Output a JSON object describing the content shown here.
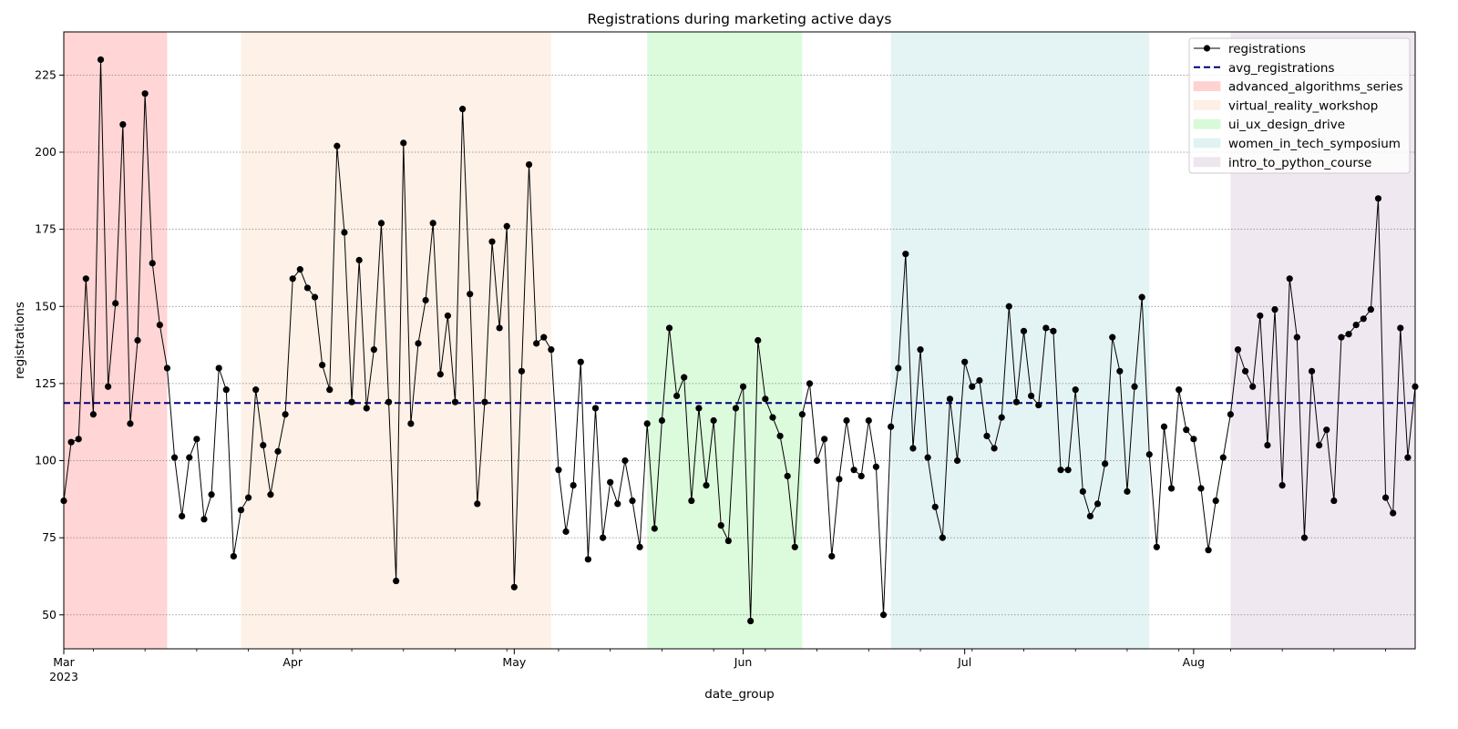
{
  "chart_data": {
    "type": "line",
    "title": "Registrations during marketing active days",
    "xlabel": "date_group",
    "ylabel": "registrations",
    "x_start": "2023-03-01",
    "x_end": "2023-08-31",
    "ylim": [
      39,
      239
    ],
    "yticks": [
      50,
      75,
      100,
      125,
      150,
      175,
      200,
      225
    ],
    "xticks_major": [
      {
        "date": "2023-03-01",
        "label": "Mar",
        "sublabel": "2023"
      },
      {
        "date": "2023-04-01",
        "label": "Apr",
        "sublabel": ""
      },
      {
        "date": "2023-05-01",
        "label": "May",
        "sublabel": ""
      },
      {
        "date": "2023-06-01",
        "label": "Jun",
        "sublabel": ""
      },
      {
        "date": "2023-07-01",
        "label": "Jul",
        "sublabel": ""
      },
      {
        "date": "2023-08-01",
        "label": "Aug",
        "sublabel": ""
      }
    ],
    "grid": "horizontal dotted",
    "legend_position": "top-right",
    "series": [
      {
        "name": "registrations",
        "style": "line-with-markers",
        "color": "#000000",
        "values": [
          87,
          106,
          107,
          159,
          115,
          230,
          124,
          151,
          209,
          112,
          139,
          219,
          164,
          144,
          130,
          101,
          82,
          101,
          107,
          81,
          89,
          130,
          123,
          69,
          84,
          88,
          123,
          105,
          89,
          103,
          115,
          159,
          162,
          156,
          153,
          131,
          123,
          202,
          174,
          119,
          165,
          117,
          136,
          177,
          119,
          61,
          203,
          112,
          138,
          152,
          177,
          128,
          147,
          119,
          214,
          154,
          86,
          119,
          171,
          143,
          176,
          59,
          129,
          196,
          138,
          140,
          136,
          97,
          77,
          92,
          132,
          68,
          117,
          75,
          93,
          86,
          100,
          87,
          72,
          112,
          78,
          113,
          143,
          121,
          127,
          87,
          117,
          92,
          113,
          79,
          74,
          117,
          124,
          48,
          139,
          120,
          114,
          108,
          95,
          72,
          115,
          125,
          100,
          107,
          69,
          94,
          113,
          97,
          95,
          113,
          98,
          50,
          111,
          130,
          167,
          104,
          136,
          101,
          85,
          75,
          120,
          100,
          132,
          124,
          126,
          108,
          104,
          114,
          150,
          119,
          142,
          121,
          118,
          143,
          142,
          97,
          97,
          123,
          90,
          82,
          86,
          99,
          140,
          129,
          90,
          124,
          153,
          102,
          72,
          111,
          91,
          123,
          110,
          107,
          91,
          71,
          87,
          101,
          115,
          136,
          129,
          124,
          147,
          105,
          149,
          92,
          159,
          140,
          75,
          129,
          105,
          110,
          87,
          140,
          141,
          144,
          146,
          149,
          185,
          88,
          83,
          143,
          101,
          124
        ]
      },
      {
        "name": "avg_registrations",
        "style": "dashed",
        "color": "#00007f",
        "value": 118.7
      }
    ],
    "spans": [
      {
        "name": "advanced_algorithms_series",
        "start": "2023-03-01",
        "end": "2023-03-15",
        "color": "#ffb3b3"
      },
      {
        "name": "virtual_reality_workshop",
        "start": "2023-03-25",
        "end": "2023-05-06",
        "color": "#fde6d4"
      },
      {
        "name": "ui_ux_design_drive",
        "start": "2023-05-19",
        "end": "2023-06-09",
        "color": "#bff7bf"
      },
      {
        "name": "women_in_tech_symposium",
        "start": "2023-06-21",
        "end": "2023-07-26",
        "color": "#cdebeb"
      },
      {
        "name": "intro_to_python_course",
        "start": "2023-08-06",
        "end": "2023-08-31",
        "color": "#e3d6e6"
      }
    ]
  }
}
